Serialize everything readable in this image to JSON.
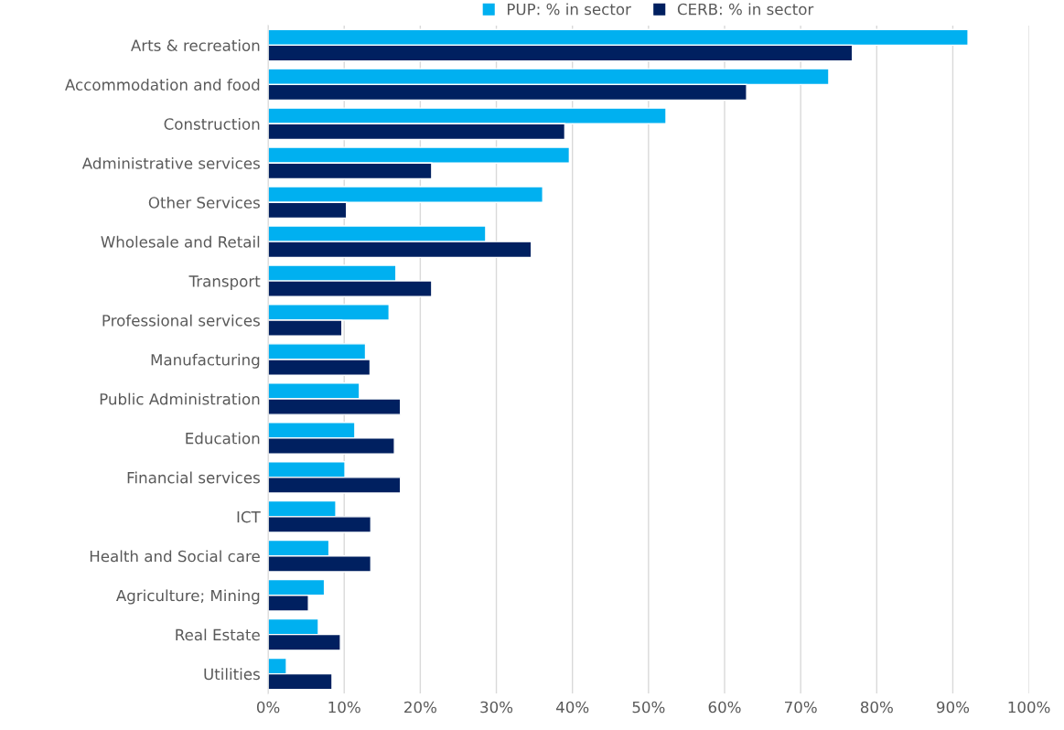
{
  "chart_data": {
    "type": "bar",
    "orientation": "horizontal",
    "categories": [
      "Arts & recreation",
      "Accommodation and food",
      "Construction",
      "Administrative services",
      "Other Services",
      "Wholesale and Retail",
      "Transport",
      "Professional services",
      "Manufacturing",
      "Public Administration",
      "Education",
      "Financial services",
      "ICT",
      "Health and Social care",
      "Agriculture; Mining",
      "Real Estate",
      "Utilities"
    ],
    "series": [
      {
        "name": "PUP: % in sector",
        "color": "#00b0f0",
        "values": [
          92.0,
          73.7,
          52.3,
          39.6,
          36.1,
          28.6,
          16.8,
          15.9,
          12.8,
          12.0,
          11.4,
          10.1,
          8.9,
          8.0,
          7.4,
          6.6,
          2.4
        ]
      },
      {
        "name": "CERB: % in sector",
        "color": "#002060",
        "values": [
          76.8,
          62.9,
          39.0,
          21.5,
          10.3,
          34.6,
          21.5,
          9.7,
          13.4,
          17.4,
          16.6,
          17.4,
          13.5,
          13.5,
          5.3,
          9.5,
          8.4
        ]
      }
    ],
    "xlim": [
      0,
      100
    ],
    "xticks": [
      {
        "value": 0,
        "label": "0%"
      },
      {
        "value": 10,
        "label": "10%"
      },
      {
        "value": 20,
        "label": "20%"
      },
      {
        "value": 30,
        "label": "30%"
      },
      {
        "value": 40,
        "label": "40%"
      },
      {
        "value": 50,
        "label": "50%"
      },
      {
        "value": 60,
        "label": "60%"
      },
      {
        "value": 70,
        "label": "70%"
      },
      {
        "value": 80,
        "label": "80%"
      },
      {
        "value": 90,
        "label": "90%"
      },
      {
        "value": 100,
        "label": "100%"
      }
    ],
    "grid": "x",
    "legend": "top"
  }
}
